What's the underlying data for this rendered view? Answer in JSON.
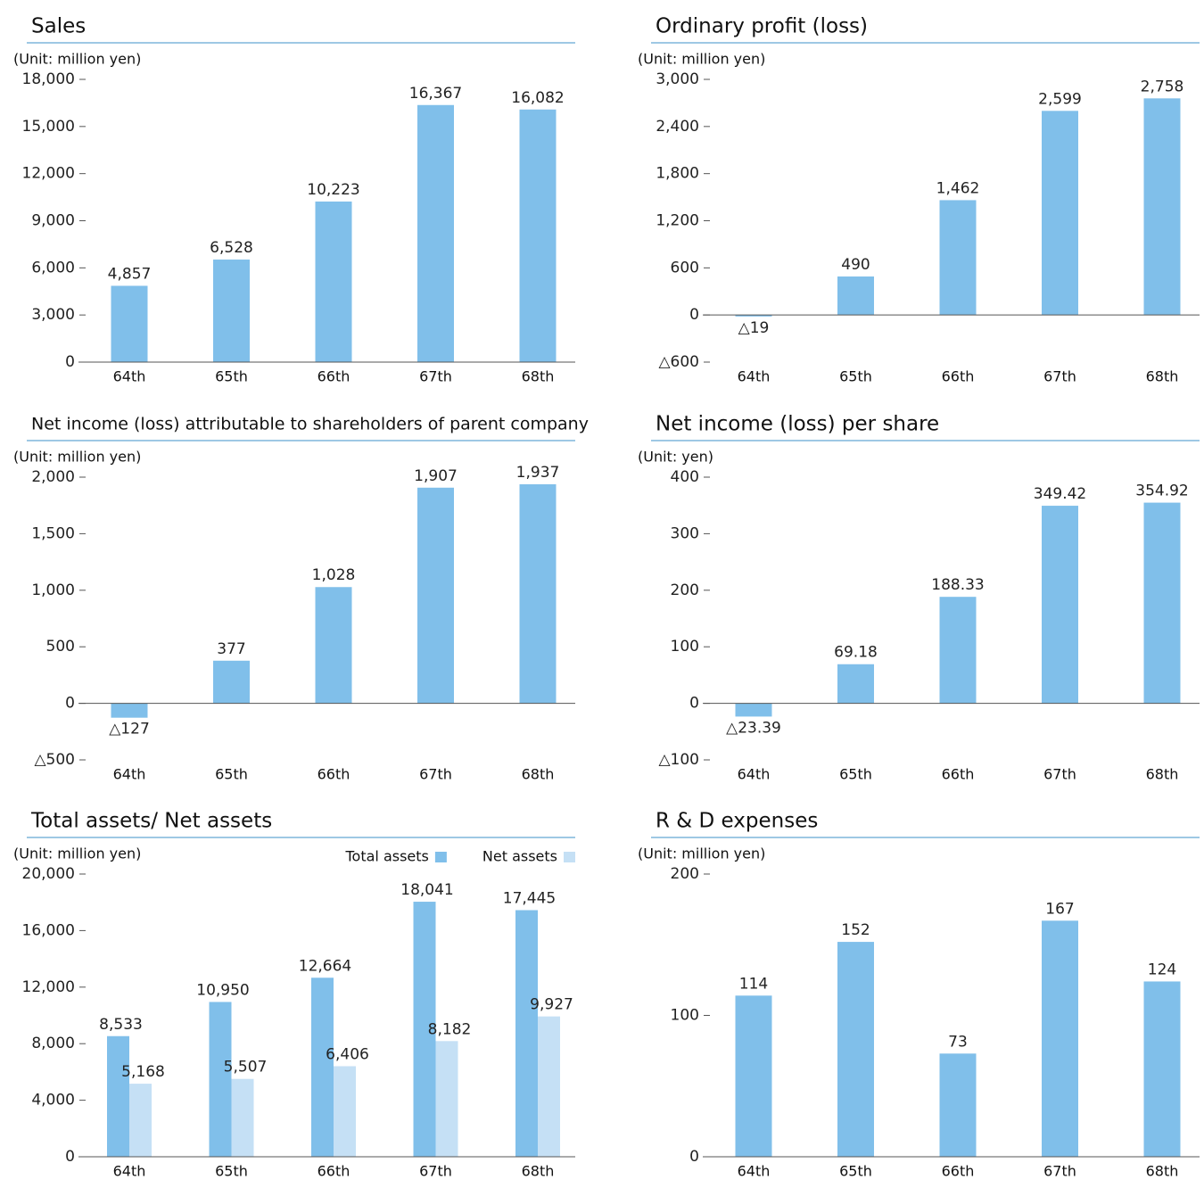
{
  "chart_data": [
    {
      "type": "bar",
      "title": "Sales",
      "unit": "(Unit: million yen)",
      "color": "#80bfea",
      "categories": [
        "64th",
        "65th",
        "66th",
        "67th",
        "68th"
      ],
      "values": [
        4857,
        6528,
        10223,
        16367,
        16082
      ],
      "value_labels": [
        "4,857",
        "6,528",
        "10,223",
        "16,367",
        "16,082"
      ],
      "ylim": [
        0,
        18000
      ],
      "yticks": [
        0,
        {
          "value": 3000,
          "label": "3,000"
        },
        {
          "value": 6000,
          "label": "6,000"
        },
        {
          "value": 9000,
          "label": "9,000"
        },
        {
          "value": 12000,
          "label": "12,000"
        },
        {
          "value": 15000,
          "label": "15,000"
        },
        {
          "value": 18000,
          "label": "18,000"
        }
      ]
    },
    {
      "type": "bar",
      "title": "Ordinary profit (loss)",
      "unit": "(Unit: million yen)",
      "color": "#80bfea",
      "categories": [
        "64th",
        "65th",
        "66th",
        "67th",
        "68th"
      ],
      "values": [
        -19,
        490,
        1462,
        2599,
        2758
      ],
      "value_labels": [
        "△19",
        "490",
        "1,462",
        "2,599",
        "2,758"
      ],
      "ylim": [
        -600,
        3000
      ],
      "yticks": [
        {
          "value": -600,
          "label": "△600"
        },
        0,
        600,
        {
          "value": 1200,
          "label": "1,200"
        },
        {
          "value": 1800,
          "label": "1,800"
        },
        {
          "value": 2400,
          "label": "2,400"
        },
        {
          "value": 3000,
          "label": "3,000"
        }
      ]
    },
    {
      "type": "bar",
      "title": "Net income (loss) attributable to shareholders of parent company",
      "unit": "(Unit: million yen)",
      "color": "#80bfea",
      "categories": [
        "64th",
        "65th",
        "66th",
        "67th",
        "68th"
      ],
      "values": [
        -127,
        377,
        1028,
        1907,
        1937
      ],
      "value_labels": [
        "△127",
        "377",
        "1,028",
        "1,907",
        "1,937"
      ],
      "ylim": [
        -500,
        2000
      ],
      "yticks": [
        {
          "value": -500,
          "label": "△500"
        },
        0,
        500,
        {
          "value": 1000,
          "label": "1,000"
        },
        {
          "value": 1500,
          "label": "1,500"
        },
        {
          "value": 2000,
          "label": "2,000"
        }
      ]
    },
    {
      "type": "bar",
      "title": "Net income (loss) per share",
      "unit": "(Unit: yen)",
      "color": "#80bfea",
      "categories": [
        "64th",
        "65th",
        "66th",
        "67th",
        "68th"
      ],
      "values": [
        -23.39,
        69.18,
        188.33,
        349.42,
        354.92
      ],
      "value_labels": [
        "△23.39",
        "69.18",
        "188.33",
        "349.42",
        "354.92"
      ],
      "ylim": [
        -100,
        400
      ],
      "yticks": [
        {
          "value": -100,
          "label": "△100"
        },
        0,
        100,
        200,
        300,
        400
      ]
    },
    {
      "type": "bar",
      "title": "Total assets/ Net assets",
      "unit": "(Unit: million yen)",
      "legend": "upper right",
      "categories": [
        "64th",
        "65th",
        "66th",
        "67th",
        "68th"
      ],
      "series": [
        {
          "name": "Total assets",
          "color": "#80bfea",
          "values": [
            8533,
            10950,
            12664,
            18041,
            17445
          ],
          "value_labels": [
            "8,533",
            "10,950",
            "12,664",
            "18,041",
            "17,445"
          ]
        },
        {
          "name": "Net assets",
          "color": "#c5e0f5",
          "values": [
            5168,
            5507,
            6406,
            8182,
            9927
          ],
          "value_labels": [
            "5,168",
            "5,507",
            "6,406",
            "8,182",
            "9,927"
          ]
        }
      ],
      "ylim": [
        0,
        20000
      ],
      "yticks": [
        0,
        {
          "value": 4000,
          "label": "4,000"
        },
        {
          "value": 8000,
          "label": "8,000"
        },
        {
          "value": 12000,
          "label": "12,000"
        },
        {
          "value": 16000,
          "label": "16,000"
        },
        {
          "value": 20000,
          "label": "20,000"
        }
      ]
    },
    {
      "type": "bar",
      "title": "R & D expenses",
      "unit": "(Unit: million yen)",
      "color": "#80bfea",
      "categories": [
        "64th",
        "65th",
        "66th",
        "67th",
        "68th"
      ],
      "values": [
        114,
        152,
        73,
        167,
        124
      ],
      "ylim": [
        0,
        200
      ],
      "yticks": [
        0,
        100,
        200
      ]
    }
  ]
}
